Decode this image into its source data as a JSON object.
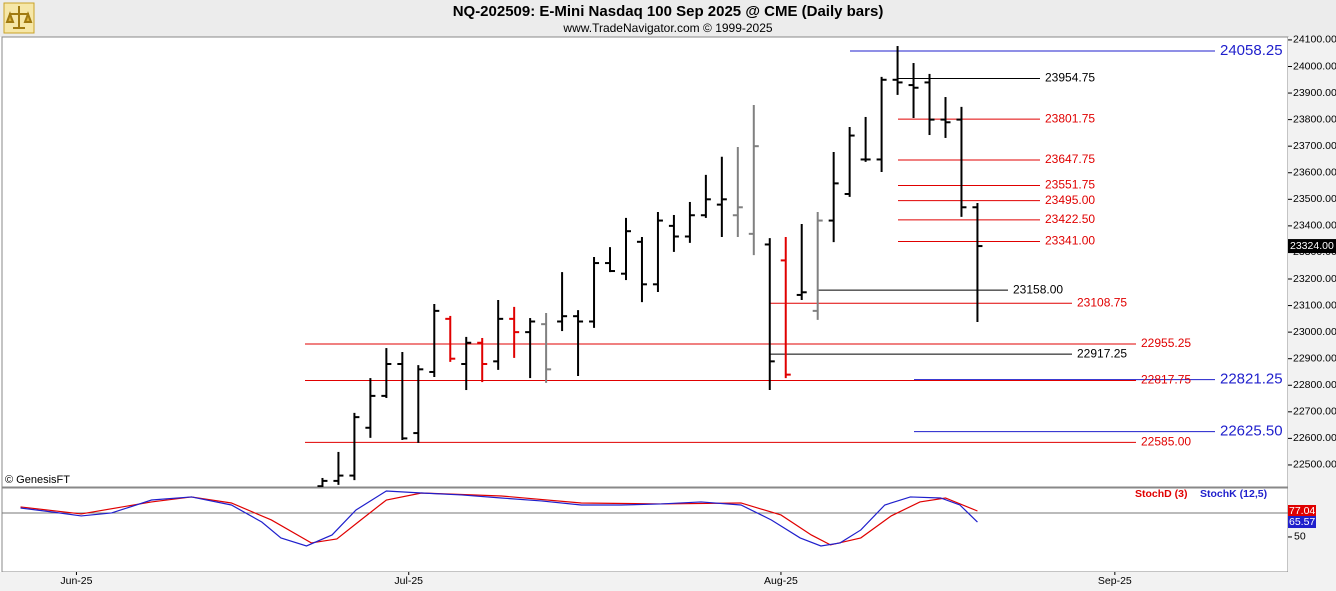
{
  "chart_data": [
    {
      "type": "ohlc",
      "title": "NQ-202509:  E-Mini Nasdaq 100 Sep 2025 @ CME  (Daily bars)",
      "subtitle": "www.TradeNavigator.com © 1999-2025",
      "watermark": "© GenesisFT",
      "x": [
        0,
        1,
        2,
        3,
        4,
        5,
        6,
        7,
        8,
        9,
        10,
        11,
        12,
        13,
        14,
        15,
        16,
        17,
        18,
        19,
        20,
        21,
        22,
        23,
        24,
        25,
        26,
        27,
        28,
        29,
        30,
        31,
        32,
        33,
        34,
        35,
        36,
        37,
        38,
        39,
        40,
        41
      ],
      "open": [
        22420,
        22440,
        22460,
        22640,
        22760,
        22880,
        22620,
        22850,
        23050,
        22880,
        22960,
        22890,
        23050,
        23000,
        23030,
        23040,
        23060,
        23040,
        23260,
        23220,
        23340,
        23180,
        23400,
        23360,
        23440,
        23480,
        23440,
        23370,
        23330,
        23270,
        23140,
        23080,
        23420,
        23520,
        23650,
        23650,
        23950,
        23930,
        23940,
        23800,
        23800,
        23470
      ],
      "high": [
        22451,
        22549,
        22696,
        22827,
        22940,
        22925,
        22876,
        23106,
        23061,
        22982,
        22978,
        23121,
        23095,
        23053,
        23072,
        23226,
        23083,
        23283,
        23320,
        23430,
        23358,
        23452,
        23441,
        23490,
        23592,
        23660,
        23697,
        23855,
        23354,
        23358,
        23407,
        23452,
        23678,
        23772,
        23810,
        23961,
        24077,
        24013,
        23972,
        23885,
        23848,
        23486
      ],
      "low": [
        22400,
        22425,
        22443,
        22602,
        22752,
        22594,
        22583,
        22831,
        22888,
        22782,
        22812,
        22858,
        22903,
        22827,
        22809,
        23004,
        22835,
        23016,
        23226,
        23196,
        23113,
        23151,
        23302,
        23336,
        23430,
        23358,
        23358,
        23290,
        22782,
        22827,
        23121,
        23046,
        23339,
        23509,
        23641,
        23603,
        23893,
        23806,
        23742,
        23731,
        23434,
        23038
      ],
      "close": [
        22440,
        22460,
        22680,
        22760,
        22880,
        22600,
        22860,
        23080,
        22900,
        22960,
        22880,
        23050,
        23000,
        23040,
        22860,
        23060,
        23040,
        23260,
        23230,
        23380,
        23180,
        23420,
        23360,
        23440,
        23500,
        23500,
        23470,
        23700,
        22890,
        22840,
        23150,
        23420,
        23560,
        23740,
        23650,
        23950,
        23940,
        23920,
        23800,
        23790,
        23470,
        23324
      ],
      "colors": [
        "#000",
        "#000",
        "#000",
        "#000",
        "#000",
        "#000",
        "#000",
        "#000",
        "#e00000",
        "#000",
        "#e00000",
        "#000",
        "#e00000",
        "#000",
        "#808080",
        "#000",
        "#000",
        "#000",
        "#000",
        "#000",
        "#000",
        "#000",
        "#000",
        "#000",
        "#000",
        "#000",
        "#808080",
        "#808080",
        "#000",
        "#e00000",
        "#000",
        "#808080",
        "#000",
        "#000",
        "#000",
        "#000",
        "#000",
        "#000",
        "#000",
        "#000",
        "#000",
        "#000"
      ],
      "xlim": [
        -20.06,
        60.44
      ],
      "ylim": [
        22417,
        24111
      ],
      "yticks": [
        {
          "value": 22500,
          "label": "22500.00"
        },
        {
          "value": 22600,
          "label": "22600.00"
        },
        {
          "value": 22700,
          "label": "22700.00"
        },
        {
          "value": 22800,
          "label": "22800.00"
        },
        {
          "value": 22900,
          "label": "22900.00"
        },
        {
          "value": 23000,
          "label": "23000.00"
        },
        {
          "value": 23100,
          "label": "23100.00"
        },
        {
          "value": 23200,
          "label": "23200.00"
        },
        {
          "value": 23300,
          "label": "23300.00"
        },
        {
          "value": 23400,
          "label": "23400.00"
        },
        {
          "value": 23500,
          "label": "23500.00"
        },
        {
          "value": 23600,
          "label": "23600.00"
        },
        {
          "value": 23700,
          "label": "23700.00"
        },
        {
          "value": 23800,
          "label": "23800.00"
        },
        {
          "value": 23900,
          "label": "23900.00"
        },
        {
          "value": 24000,
          "label": "24000.00"
        },
        {
          "value": 24100,
          "label": "24100.00"
        }
      ],
      "last_price": {
        "value": 23324,
        "label": "23324.00"
      },
      "levels": [
        {
          "value": 24058.25,
          "label": "24058.25",
          "color": "#1f1fcc"
        },
        {
          "value": 23954.75,
          "label": "23954.75",
          "color": "#000000"
        },
        {
          "value": 23801.75,
          "label": "23801.75",
          "color": "#e00000"
        },
        {
          "value": 23647.75,
          "label": "23647.75",
          "color": "#e00000"
        },
        {
          "value": 23551.75,
          "label": "23551.75",
          "color": "#e00000"
        },
        {
          "value": 23495,
          "label": "23495.00",
          "color": "#e00000"
        },
        {
          "value": 23422.5,
          "label": "23422.50",
          "color": "#e00000"
        },
        {
          "value": 23341,
          "label": "23341.00",
          "color": "#e00000"
        },
        {
          "value": 23158,
          "label": "23158.00",
          "color": "#000000"
        },
        {
          "value": 23108.75,
          "label": "23108.75",
          "color": "#e00000"
        },
        {
          "value": 22955.25,
          "label": "22955.25",
          "color": "#e00000"
        },
        {
          "value": 22917.25,
          "label": "22917.25",
          "color": "#000000"
        },
        {
          "value": 22821.25,
          "label": "22821.25",
          "color": "#1f1fcc"
        },
        {
          "value": 22817.75,
          "label": "22817.75",
          "color": "#e00000"
        },
        {
          "value": 22625.5,
          "label": "22625.50",
          "color": "#1f1fcc"
        },
        {
          "value": 22585,
          "label": "22585.00",
          "color": "#e00000"
        }
      ]
    },
    {
      "type": "line",
      "xlim": [
        -20.06,
        60.44
      ],
      "ylim": [
        13.5,
        101
      ],
      "yticks": [
        50
      ],
      "hlines": [
        75
      ],
      "xticks": [
        {
          "value": -15.4,
          "label": "Jun-25"
        },
        {
          "value": 5.4,
          "label": "Jul-25"
        },
        {
          "value": 28.7,
          "label": "Aug-25"
        },
        {
          "value": 49.6,
          "label": "Sep-25"
        }
      ],
      "series": [
        {
          "name": "StochD (3)",
          "color": "#e00000",
          "x": [
            -18.9,
            -15.1,
            -10.7,
            -8.2,
            -5.7,
            -3.2,
            -0.7,
            0.9,
            2.4,
            4.0,
            6.2,
            11.2,
            16.2,
            21.2,
            26.2,
            28.7,
            30.6,
            31.8,
            33.7,
            35.6,
            37.4,
            39.0,
            41
          ],
          "values": [
            81.3,
            74.0,
            86.5,
            91.7,
            85.4,
            67.7,
            43.8,
            47.9,
            67.7,
            88.5,
            95.8,
            92.7,
            85.4,
            84.4,
            85.4,
            72.9,
            52.1,
            41.7,
            49.0,
            71.9,
            86.5,
            90.6,
            77.04
          ]
        },
        {
          "name": "StochK (12,5)",
          "color": "#1f1fcc",
          "x": [
            -18.9,
            -16.9,
            -15.1,
            -13.2,
            -10.7,
            -8.2,
            -5.7,
            -3.8,
            -2.6,
            -1.0,
            0.6,
            2.1,
            4.0,
            6.2,
            8.7,
            11.2,
            13.7,
            16.2,
            18.7,
            21.2,
            23.7,
            26.2,
            28.1,
            29.9,
            31.2,
            32.4,
            33.7,
            35.2,
            36.8,
            38.7,
            39.9,
            41
          ],
          "values": [
            80.2,
            76.0,
            71.9,
            75.0,
            88.5,
            91.7,
            83.3,
            65.6,
            49.0,
            40.6,
            52.1,
            78.1,
            97.9,
            95.8,
            93.8,
            90.6,
            87.5,
            83.3,
            83.3,
            84.4,
            86.5,
            83.3,
            67.7,
            49.0,
            40.6,
            43.8,
            57.3,
            83.3,
            91.7,
            90.6,
            83.3,
            65.57
          ]
        }
      ]
    }
  ]
}
